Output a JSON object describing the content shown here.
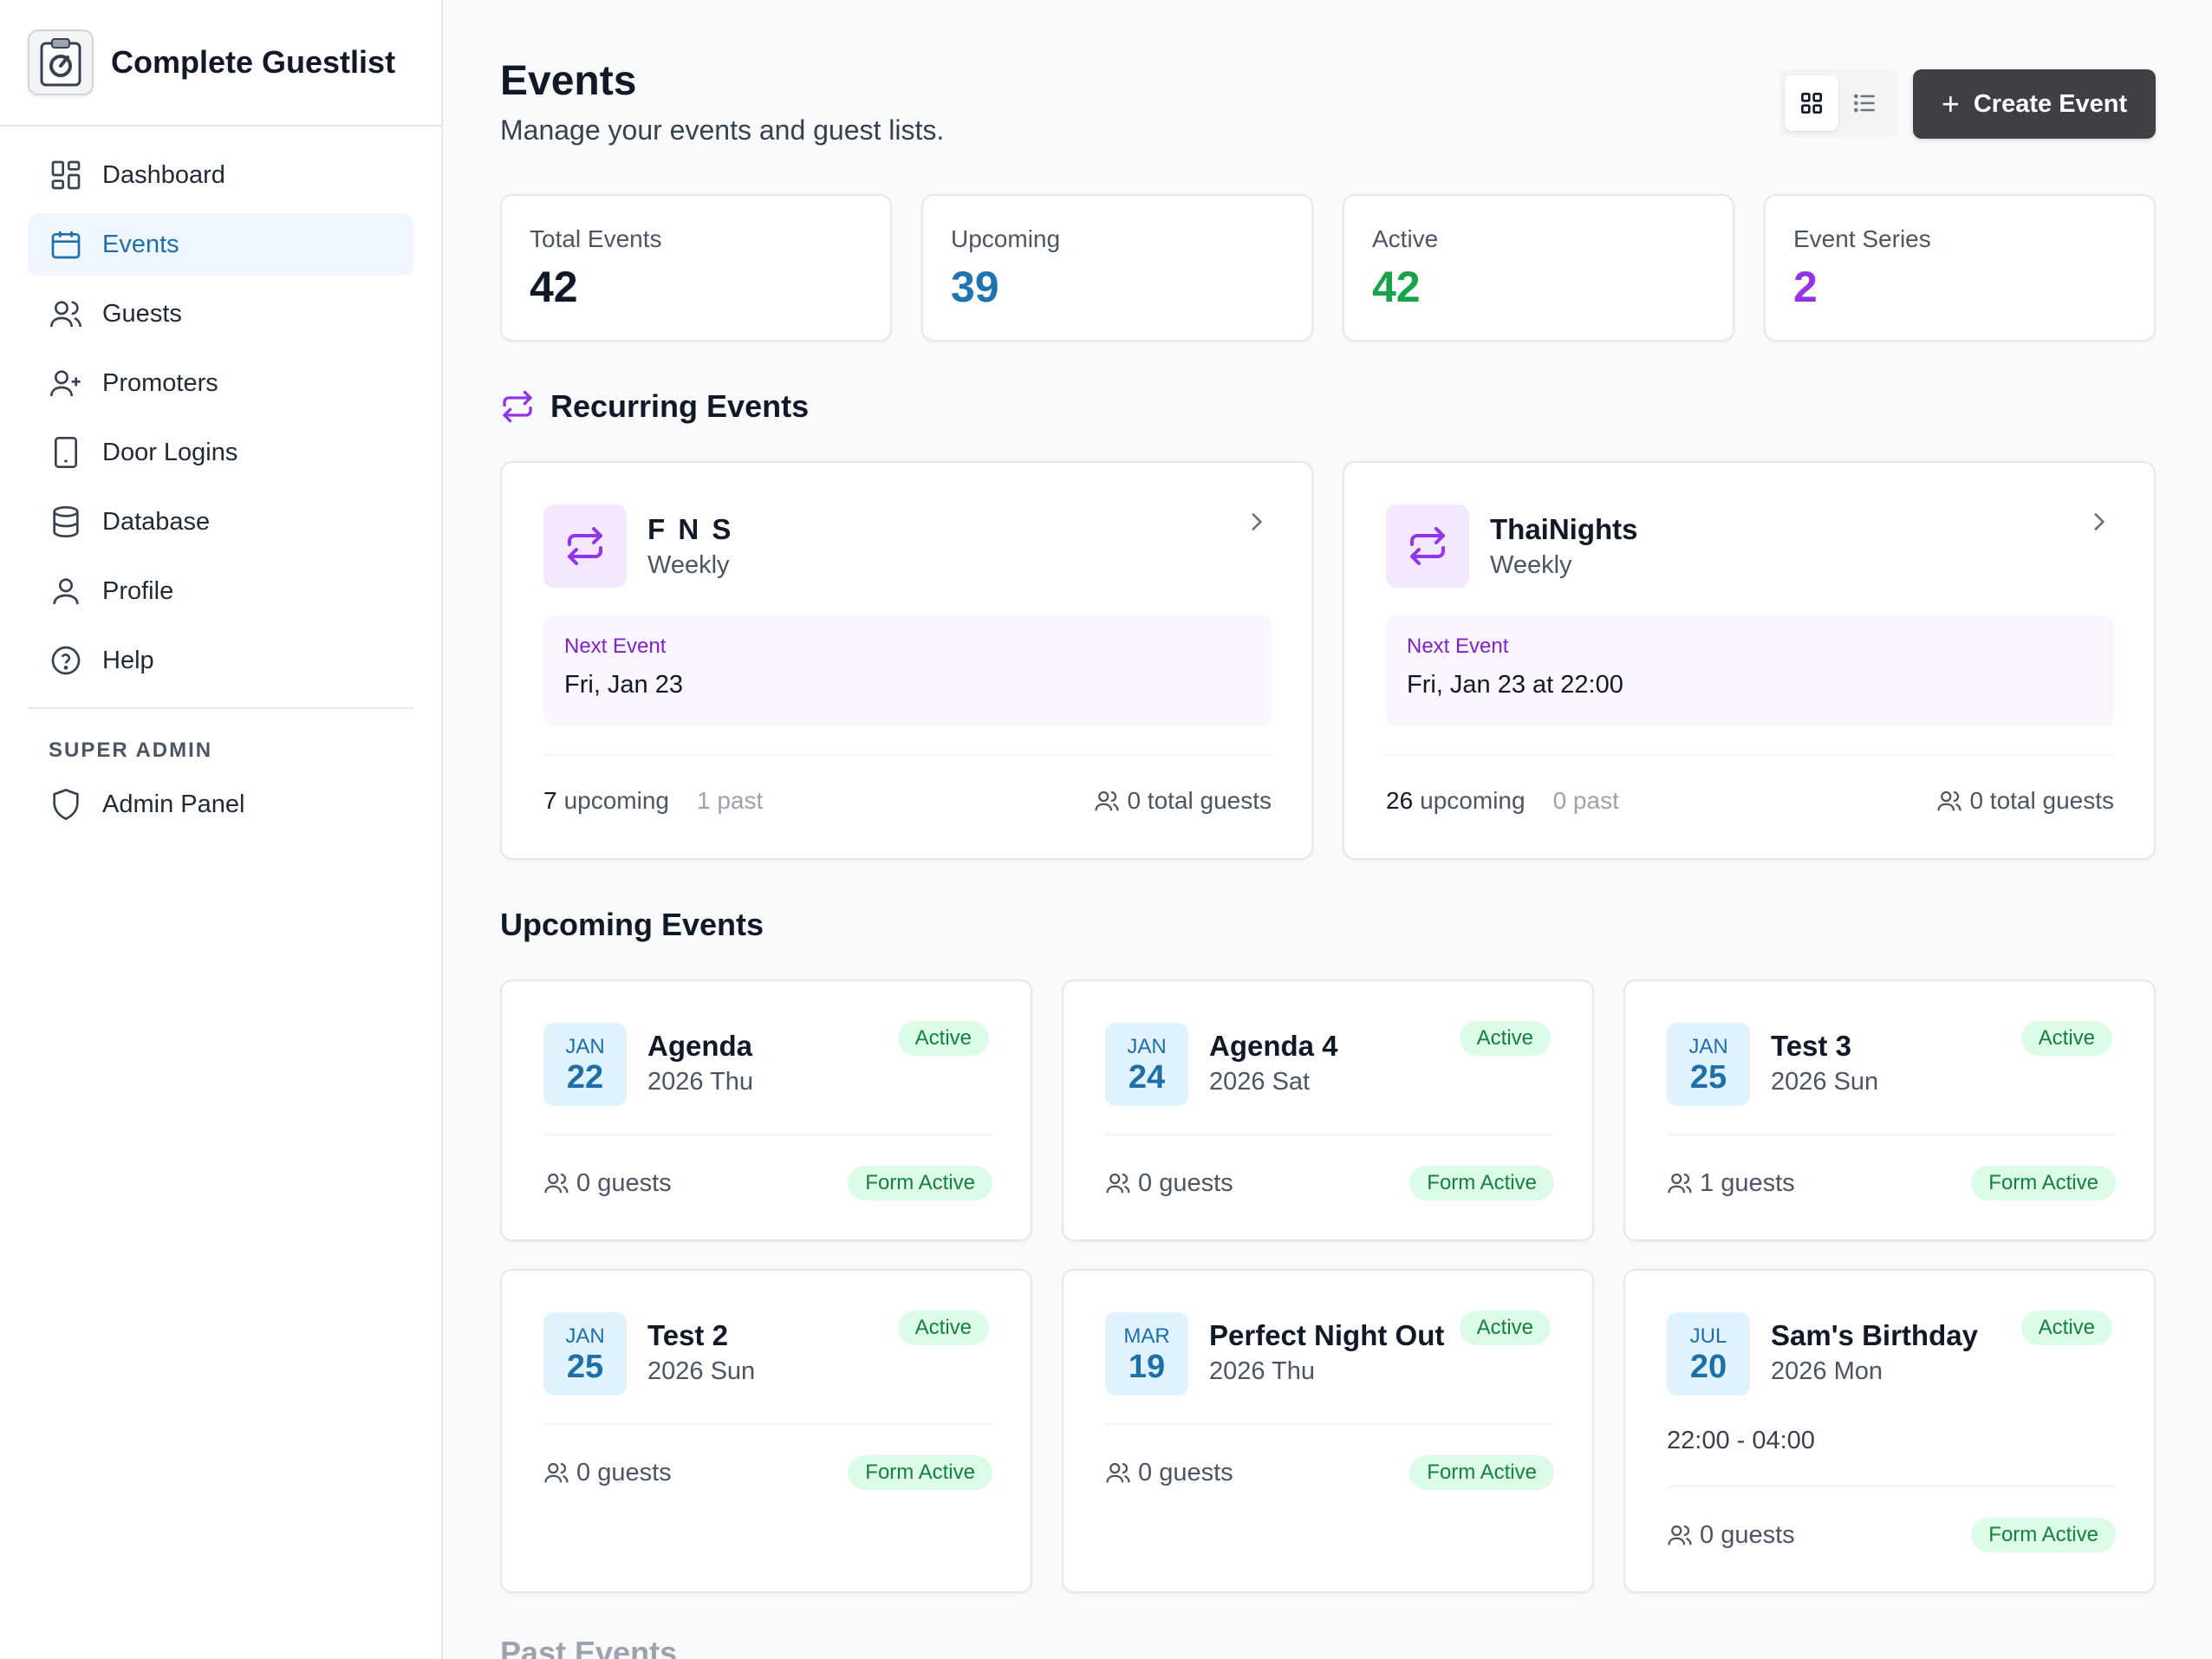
{
  "brand": {
    "title": "Complete Guestlist"
  },
  "sidebar": {
    "items": [
      {
        "label": "Dashboard",
        "icon": "dashboard-icon"
      },
      {
        "label": "Events",
        "icon": "calendar-icon"
      },
      {
        "label": "Guests",
        "icon": "users-icon"
      },
      {
        "label": "Promoters",
        "icon": "user-plus-icon"
      },
      {
        "label": "Door Logins",
        "icon": "tablet-icon"
      },
      {
        "label": "Database",
        "icon": "database-icon"
      },
      {
        "label": "Profile",
        "icon": "user-icon"
      },
      {
        "label": "Help",
        "icon": "help-circle-icon"
      }
    ],
    "section_label": "SUPER ADMIN",
    "admin_item": {
      "label": "Admin Panel",
      "icon": "shield-icon"
    }
  },
  "header": {
    "title": "Events",
    "subtitle": "Manage your events and guest lists.",
    "create_label": "Create Event"
  },
  "stats": [
    {
      "label": "Total Events",
      "value": "42",
      "color": "#111827"
    },
    {
      "label": "Upcoming",
      "value": "39",
      "color": "#1e73b5"
    },
    {
      "label": "Active",
      "value": "42",
      "color": "#16a34a"
    },
    {
      "label": "Event Series",
      "value": "2",
      "color": "#9333ea"
    }
  ],
  "recurring": {
    "title": "Recurring Events",
    "next_label": "Next Event",
    "upcoming_label": "upcoming",
    "past_label": "past",
    "guests_label": "total guests",
    "series": [
      {
        "name": "F N S",
        "frequency": "Weekly",
        "next_date": "Fri, Jan 23",
        "upcoming": "7",
        "past": "1",
        "guests": "0"
      },
      {
        "name": "ThaiNights",
        "frequency": "Weekly",
        "next_date": "Fri, Jan 23 at 22:00",
        "upcoming": "26",
        "past": "0",
        "guests": "0"
      }
    ]
  },
  "upcoming": {
    "title": "Upcoming Events",
    "status_label": "Active",
    "form_label": "Form Active",
    "guests_suffix": "guests",
    "events": [
      {
        "month": "JAN",
        "day": "22",
        "name": "Agenda",
        "sub": "2026 Thu",
        "guests": "0",
        "time": ""
      },
      {
        "month": "JAN",
        "day": "24",
        "name": "Agenda 4",
        "sub": "2026 Sat",
        "guests": "0",
        "time": ""
      },
      {
        "month": "JAN",
        "day": "25",
        "name": "Test 3",
        "sub": "2026 Sun",
        "guests": "1",
        "time": ""
      },
      {
        "month": "JAN",
        "day": "25",
        "name": "Test 2",
        "sub": "2026 Sun",
        "guests": "0",
        "time": ""
      },
      {
        "month": "MAR",
        "day": "19",
        "name": "Perfect Night Out",
        "sub": "2026 Thu",
        "guests": "0",
        "time": ""
      },
      {
        "month": "JUL",
        "day": "20",
        "name": "Sam's Birthday",
        "sub": "2026 Mon",
        "guests": "0",
        "time": "22:00 - 04:00"
      }
    ]
  },
  "past": {
    "title": "Past Events"
  }
}
